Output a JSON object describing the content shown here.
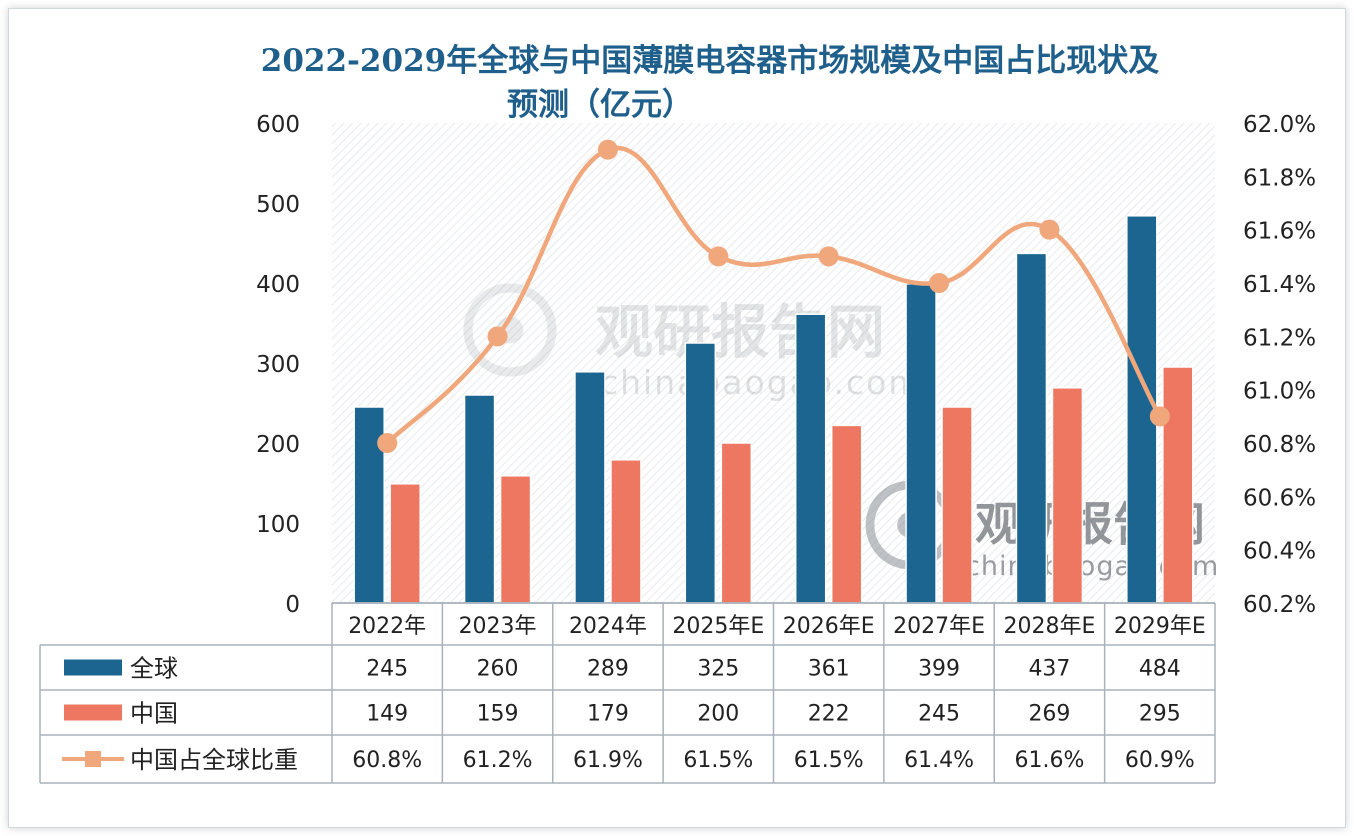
{
  "chart_data": {
    "type": "bar",
    "title": "2022-2029年全球与中国薄膜电容器市场规模及中国占比现状及预测（亿元）",
    "title_lines": [
      "2022-2029年全球与中国薄膜电容器市场规模及中国占比现状及",
      "预测（亿元）"
    ],
    "categories": [
      "2022年",
      "2023年",
      "2024年",
      "2025年E",
      "2026年E",
      "2027年E",
      "2028年E",
      "2029年E"
    ],
    "series": [
      {
        "name": "全球",
        "type": "bar",
        "axis": "left",
        "color": "#1b6590",
        "values": [
          245,
          260,
          289,
          325,
          361,
          399,
          437,
          484
        ],
        "labels": [
          "245",
          "260",
          "289",
          "325",
          "361",
          "399",
          "437",
          "484"
        ]
      },
      {
        "name": "中国",
        "type": "bar",
        "axis": "left",
        "color": "#ee7761",
        "values": [
          149,
          159,
          179,
          200,
          222,
          245,
          269,
          295
        ],
        "labels": [
          "149",
          "159",
          "179",
          "200",
          "222",
          "245",
          "269",
          "295"
        ]
      },
      {
        "name": "中国占全球比重",
        "type": "line",
        "axis": "right",
        "color": "#f0a77b",
        "values": [
          60.8,
          61.2,
          61.9,
          61.5,
          61.5,
          61.4,
          61.6,
          60.9
        ],
        "labels": [
          "60.8%",
          "61.2%",
          "61.9%",
          "61.5%",
          "61.5%",
          "61.4%",
          "61.6%",
          "60.9%"
        ]
      }
    ],
    "y_left": {
      "min": 0,
      "max": 600,
      "ticks": [
        "0",
        "100",
        "200",
        "300",
        "400",
        "500",
        "600"
      ]
    },
    "y_right": {
      "min": 60.2,
      "max": 62.0,
      "ticks": [
        "60.2%",
        "60.4%",
        "60.6%",
        "60.8%",
        "61.0%",
        "61.2%",
        "61.4%",
        "61.6%",
        "61.8%",
        "62.0%"
      ]
    },
    "data_table": true,
    "legend": "data-table-left",
    "watermark": {
      "brand": "观研报告网",
      "url": "chinabaogao.com"
    }
  }
}
